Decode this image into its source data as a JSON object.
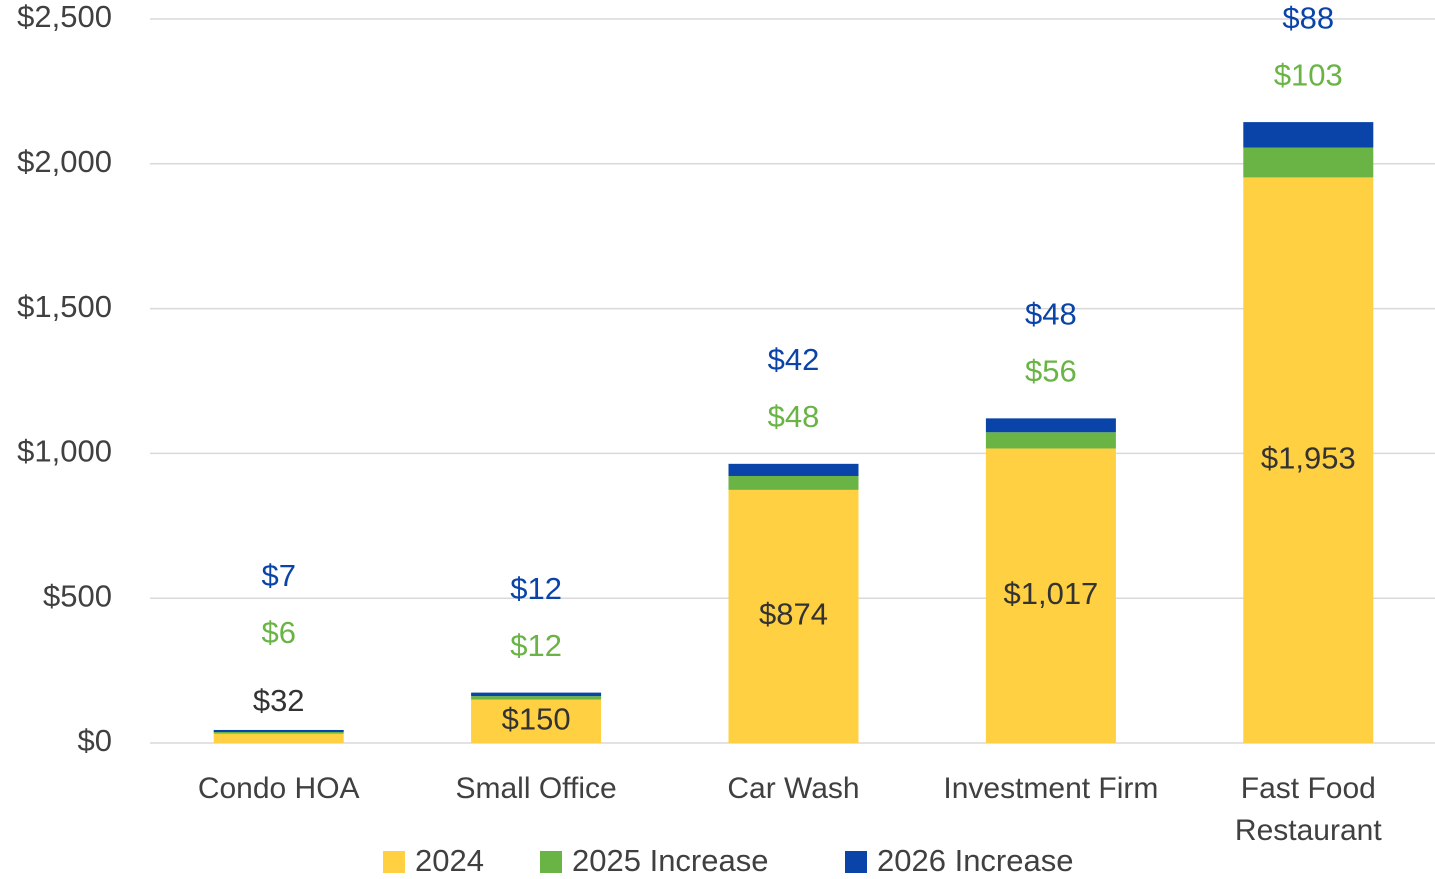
{
  "chart_data": {
    "type": "stacked_bar",
    "categories": [
      "Condo HOA",
      "Small Office",
      "Car Wash",
      "Investment Firm",
      "Fast Food Restaurant"
    ],
    "series": [
      {
        "name": "2024",
        "color": "#FFD042",
        "label_color": "#333333",
        "values": [
          32,
          150,
          874,
          1017,
          1953
        ],
        "value_labels": [
          "$32",
          "$150",
          "$874",
          "$1,017",
          "$1,953"
        ]
      },
      {
        "name": "2025 Increase",
        "color": "#6AB446",
        "label_color": "#6AB446",
        "values": [
          6,
          12,
          48,
          56,
          103
        ],
        "value_labels": [
          "$6",
          "$12",
          "$48",
          "$56",
          "$103"
        ]
      },
      {
        "name": "2026 Increase",
        "color": "#0B44A8",
        "label_color": "#0B44A8",
        "values": [
          7,
          12,
          42,
          48,
          88
        ],
        "value_labels": [
          "$7",
          "$12",
          "$42",
          "$48",
          "$88"
        ]
      }
    ],
    "ylim": [
      0,
      2500
    ],
    "yticks": [
      {
        "value": 0,
        "label": "$0"
      },
      {
        "value": 500,
        "label": "$500"
      },
      {
        "value": 1000,
        "label": "$1,000"
      },
      {
        "value": 1500,
        "label": "$1,500"
      },
      {
        "value": 2000,
        "label": "$2,000"
      },
      {
        "value": 2500,
        "label": "$2,500"
      }
    ],
    "grid": true,
    "legend": "bottom"
  }
}
